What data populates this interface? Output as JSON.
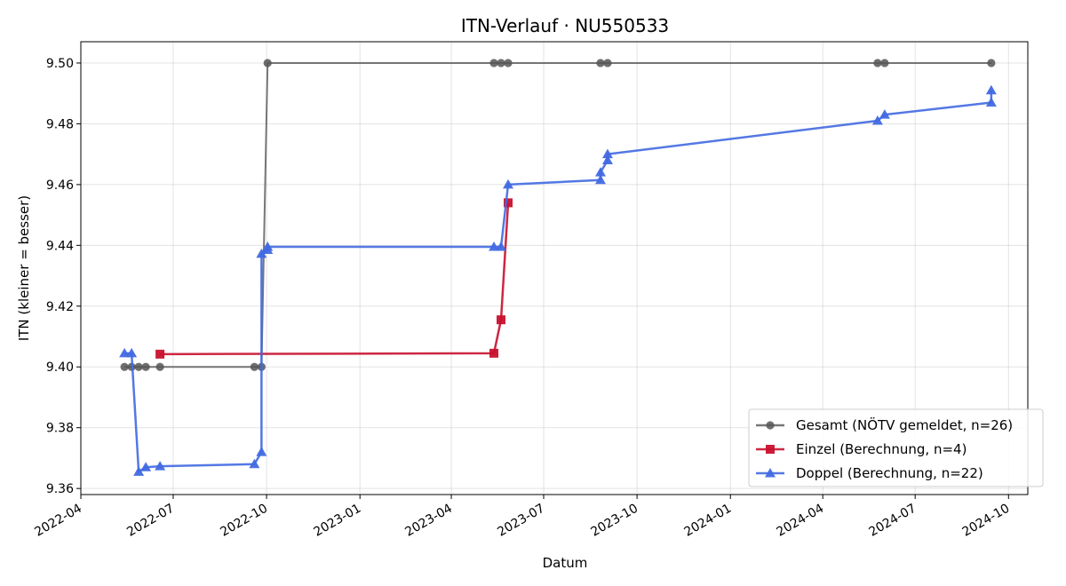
{
  "chart_data": {
    "type": "line",
    "title": "ITN-Verlauf · NU550533",
    "xlabel": "Datum",
    "ylabel": "ITN  (kleiner = besser)",
    "x_axis": "date",
    "xlim": [
      "2022-04-01",
      "2024-10-20"
    ],
    "ylim": [
      9.358,
      9.507
    ],
    "x_ticks": [
      "2022-04-01",
      "2022-07-01",
      "2022-10-01",
      "2023-01-01",
      "2023-04-01",
      "2023-07-01",
      "2023-10-01",
      "2024-01-01",
      "2024-04-01",
      "2024-07-01",
      "2024-10-01"
    ],
    "x_tick_labels": [
      "2022-04",
      "2022-07",
      "2022-10",
      "2023-01",
      "2023-04",
      "2023-07",
      "2023-10",
      "2024-01",
      "2024-04",
      "2024-07",
      "2024-10"
    ],
    "y_ticks": [
      9.36,
      9.38,
      9.4,
      9.42,
      9.44,
      9.46,
      9.48,
      9.5
    ],
    "y_tick_labels": [
      "9.36",
      "9.38",
      "9.40",
      "9.42",
      "9.44",
      "9.46",
      "9.48",
      "9.50"
    ],
    "grid": true,
    "legend_position": "bottom-right",
    "series": [
      {
        "name": "Gesamt (NÖTV gemeldet, n=26)",
        "color": "#555555",
        "marker": "circle",
        "points": [
          [
            "2022-05-14",
            9.4
          ],
          [
            "2022-05-21",
            9.4
          ],
          [
            "2022-05-28",
            9.4
          ],
          [
            "2022-06-04",
            9.4
          ],
          [
            "2022-06-18",
            9.4
          ],
          [
            "2022-09-19",
            9.4
          ],
          [
            "2022-09-26",
            9.4
          ],
          [
            "2022-10-02",
            9.5
          ],
          [
            "2023-05-13",
            9.5
          ],
          [
            "2023-05-20",
            9.5
          ],
          [
            "2023-05-27",
            9.5
          ],
          [
            "2023-08-26",
            9.5
          ],
          [
            "2023-09-02",
            9.5
          ],
          [
            "2024-05-25",
            9.5
          ],
          [
            "2024-06-01",
            9.5
          ],
          [
            "2024-09-14",
            9.5
          ]
        ]
      },
      {
        "name": "Einzel (Berechnung, n=4)",
        "color": "#c8102e",
        "marker": "square",
        "points": [
          [
            "2022-06-18",
            9.4042
          ],
          [
            "2023-05-13",
            9.4045
          ],
          [
            "2023-05-20",
            9.4155
          ],
          [
            "2023-05-27",
            9.454
          ]
        ]
      },
      {
        "name": "Doppel (Berechnung, n=22)",
        "color": "#4169e1",
        "marker": "triangle",
        "points": [
          [
            "2022-05-14",
            9.4045
          ],
          [
            "2022-05-21",
            9.4045
          ],
          [
            "2022-05-28",
            9.3655
          ],
          [
            "2022-06-04",
            9.367
          ],
          [
            "2022-06-18",
            9.3673
          ],
          [
            "2022-09-19",
            9.368
          ],
          [
            "2022-09-26",
            9.372
          ],
          [
            "2022-09-26",
            9.4372
          ],
          [
            "2022-10-02",
            9.4385
          ],
          [
            "2022-10-02",
            9.4395
          ],
          [
            "2023-05-13",
            9.4395
          ],
          [
            "2023-05-20",
            9.4395
          ],
          [
            "2023-05-27",
            9.46
          ],
          [
            "2023-08-26",
            9.4615
          ],
          [
            "2023-08-26",
            9.464
          ],
          [
            "2023-09-02",
            9.468
          ],
          [
            "2023-09-02",
            9.47
          ],
          [
            "2024-05-25",
            9.481
          ],
          [
            "2024-06-01",
            9.483
          ],
          [
            "2024-09-14",
            9.487
          ],
          [
            "2024-09-14",
            9.491
          ]
        ]
      }
    ]
  }
}
